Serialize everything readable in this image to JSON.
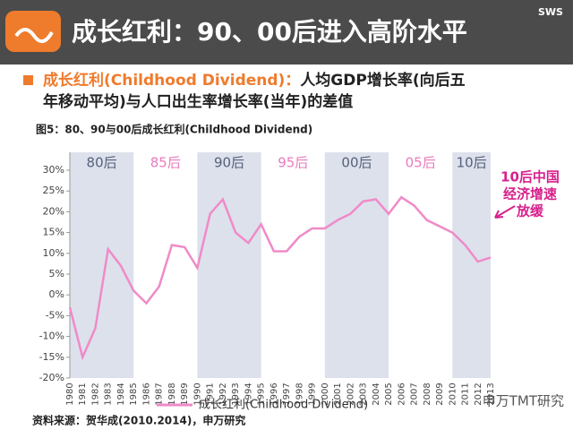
{
  "slide": {
    "title": "成长红利：90、00后进入高阶水平",
    "brand": "SWS",
    "bullet_highlight": "成长红利(Childhood Dividend)：",
    "bullet_line1": "人均GDP增长率(向后五",
    "bullet_line2": "年移动平均)与人口出生率增长率(当年)的差值",
    "source": "资料来源：贺华成(2010.2014)，申万研究",
    "watermark": "申万TMT研究"
  },
  "chart_data": {
    "type": "line",
    "title": "图5：80、90与00后成长红利(Childhood  Dividend)",
    "categories": [
      "1980",
      "1981",
      "1982",
      "1983",
      "1984",
      "1985",
      "1986",
      "1987",
      "1988",
      "1989",
      "1990",
      "1991",
      "1992",
      "1993",
      "1994",
      "1995",
      "1996",
      "1997",
      "1998",
      "1999",
      "2000",
      "2001",
      "2002",
      "2003",
      "2004",
      "2005",
      "2006",
      "2007",
      "2008",
      "2009",
      "2010",
      "2011",
      "2012",
      "2013"
    ],
    "series": [
      {
        "name": "成长红利(Childhood Dividend)",
        "color": "#f08ac8",
        "values": [
          -3,
          -15,
          -8,
          11,
          7,
          1,
          -2,
          2,
          12,
          11.5,
          6.5,
          19.5,
          23,
          15,
          12.5,
          17,
          10.5,
          10.5,
          14,
          16,
          16,
          18,
          19.5,
          22.5,
          23,
          19.5,
          23.5,
          21.5,
          18,
          16.5,
          15,
          12,
          8,
          9
        ]
      }
    ],
    "bands": [
      "80后",
      "85后",
      "90后",
      "95后",
      "00后",
      "05后",
      "10后"
    ],
    "annotation": [
      "10后中国",
      "经济增速",
      "放缓"
    ],
    "ylim": [
      -20,
      30
    ],
    "yticks": [
      {
        "value": -20,
        "label": "-20%"
      },
      {
        "value": -15,
        "label": "-15%"
      },
      {
        "value": -10,
        "label": "-10%"
      },
      {
        "value": -5,
        "label": "-5%"
      },
      {
        "value": 0,
        "label": "0%"
      },
      {
        "value": 5,
        "label": "5%"
      },
      {
        "value": 10,
        "label": "10%"
      },
      {
        "value": 15,
        "label": "15%"
      },
      {
        "value": 20,
        "label": "20%"
      },
      {
        "value": 25,
        "label": "25%"
      },
      {
        "value": 30,
        "label": "30%"
      }
    ]
  }
}
